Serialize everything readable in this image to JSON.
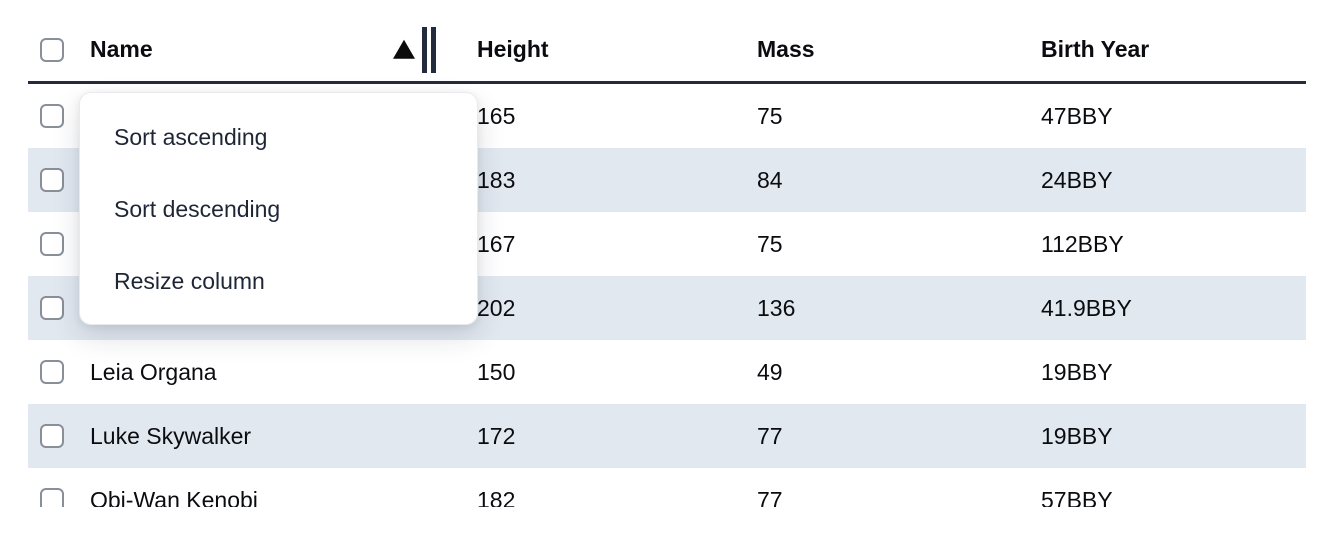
{
  "table": {
    "columns": [
      {
        "key": "name",
        "label": "Name"
      },
      {
        "key": "height",
        "label": "Height"
      },
      {
        "key": "mass",
        "label": "Mass"
      },
      {
        "key": "birth_year",
        "label": "Birth Year"
      }
    ],
    "sort": {
      "column": "Name",
      "direction": "ascending"
    },
    "rows": [
      {
        "name": "",
        "height": "165",
        "mass": "75",
        "birth_year": "47BBY"
      },
      {
        "name": "",
        "height": "183",
        "mass": "84",
        "birth_year": "24BBY"
      },
      {
        "name": "",
        "height": "167",
        "mass": "75",
        "birth_year": "112BBY"
      },
      {
        "name": "",
        "height": "202",
        "mass": "136",
        "birth_year": "41.9BBY"
      },
      {
        "name": "Leia Organa",
        "height": "150",
        "mass": "49",
        "birth_year": "19BBY"
      },
      {
        "name": "Luke Skywalker",
        "height": "172",
        "mass": "77",
        "birth_year": "19BBY"
      },
      {
        "name": "Obi-Wan Kenobi",
        "height": "182",
        "mass": "77",
        "birth_year": "57BBY"
      }
    ]
  },
  "menu": {
    "items": [
      {
        "label": "Sort ascending"
      },
      {
        "label": "Sort descending"
      },
      {
        "label": "Resize column"
      }
    ]
  },
  "colors": {
    "stripe": "#e2e8f0",
    "header_border": "#222c3c",
    "text": "#0b0c10",
    "menu_text": "#1e2636",
    "checkbox_border": "#898f99"
  }
}
